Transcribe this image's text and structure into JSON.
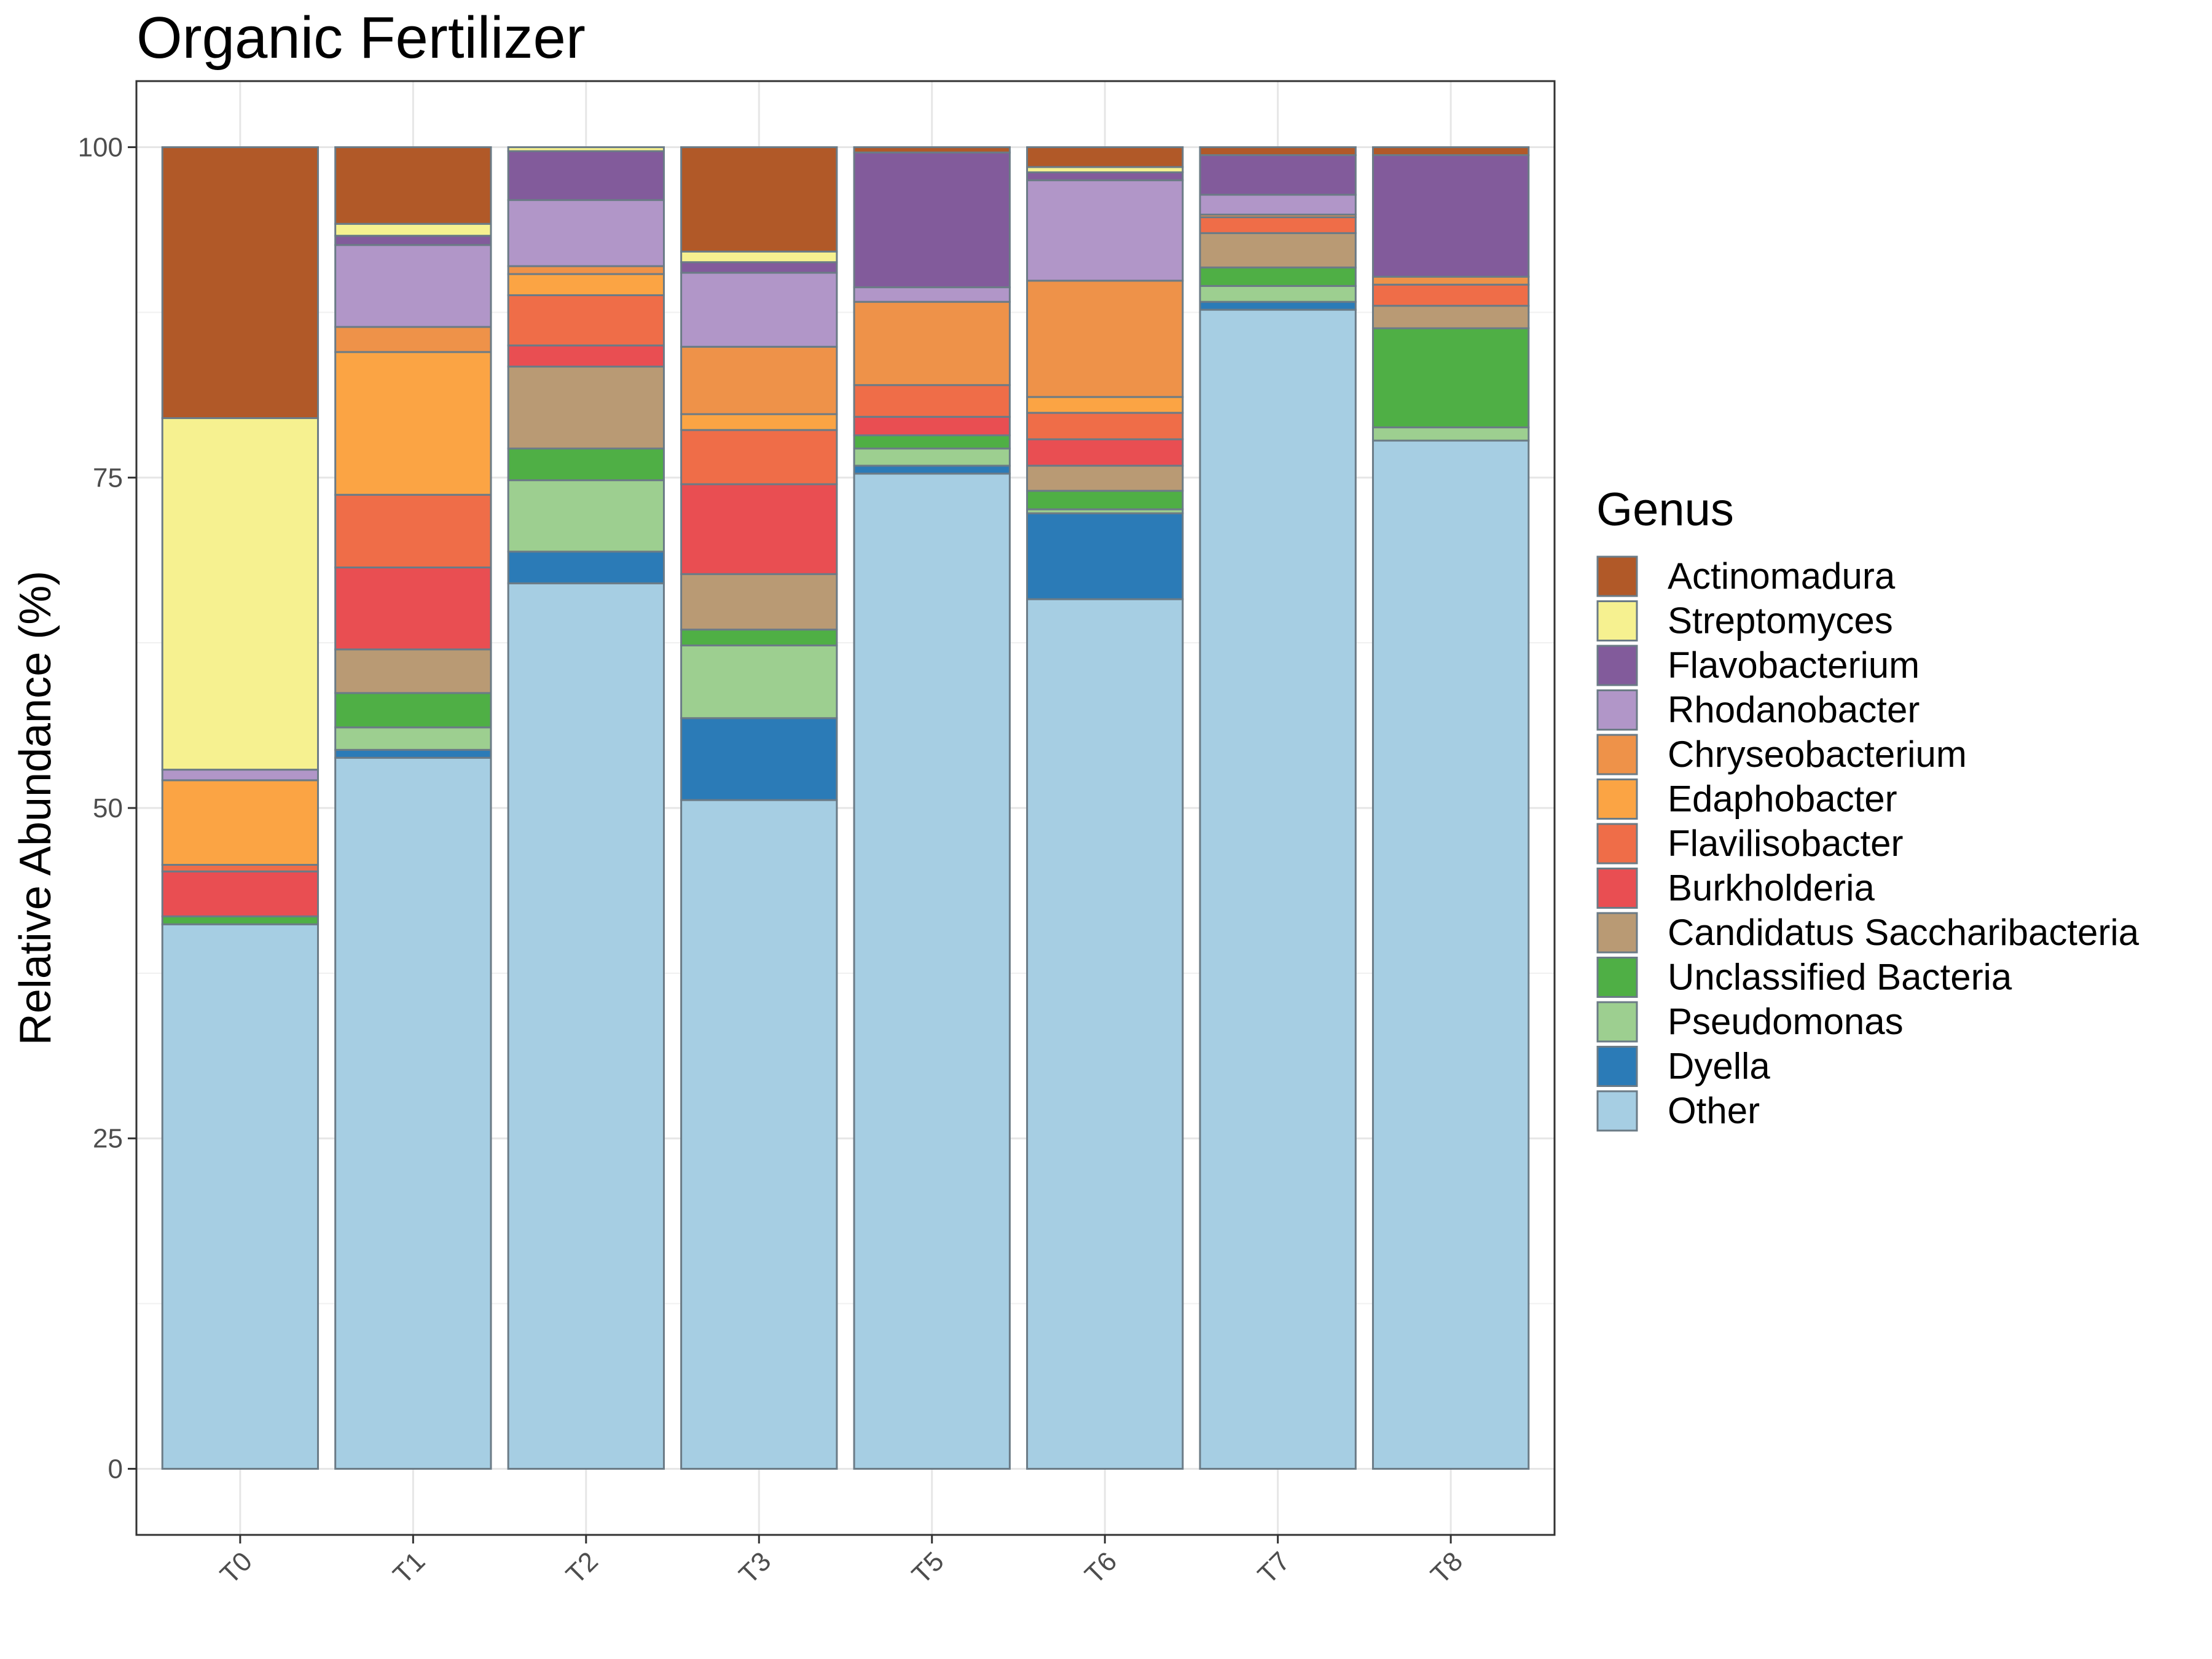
{
  "chart_data": {
    "type": "bar",
    "stacked": true,
    "title": "Organic Fertilizer",
    "xlabel": "",
    "ylabel": "Relative Abundance (%)",
    "ylim": [
      -5,
      105
    ],
    "yticks": [
      0,
      25,
      50,
      75,
      100
    ],
    "grid": true,
    "legend_title": "Genus",
    "legend_position": "right",
    "categories": [
      "T0",
      "T1",
      "T2",
      "T3",
      "T5",
      "T6",
      "T7",
      "T8"
    ],
    "series": [
      {
        "name": "Other",
        "color": "#A6CEE3",
        "values": [
          41.2,
          53.8,
          67.0,
          50.6,
          75.3,
          65.8,
          87.7,
          77.8
        ]
      },
      {
        "name": "Dyella",
        "color": "#2B7BB7",
        "values": [
          0.0,
          0.6,
          2.4,
          6.2,
          0.6,
          6.5,
          0.6,
          0.0
        ]
      },
      {
        "name": "Pseudomonas",
        "color": "#9DCF90",
        "values": [
          0.0,
          1.7,
          5.4,
          5.5,
          1.3,
          0.3,
          1.2,
          1.0
        ]
      },
      {
        "name": "Unclassified Bacteria",
        "color": "#4FAF45",
        "values": [
          0.6,
          2.6,
          2.4,
          1.2,
          1.0,
          1.4,
          1.4,
          7.5
        ]
      },
      {
        "name": "Candidatus Saccharibacteria",
        "color": "#B99A74",
        "values": [
          0.0,
          3.3,
          6.2,
          4.2,
          0.0,
          1.9,
          2.6,
          1.7
        ]
      },
      {
        "name": "Burkholderia",
        "color": "#E94E52",
        "values": [
          3.4,
          6.2,
          1.6,
          6.8,
          1.4,
          2.0,
          0.0,
          0.0
        ]
      },
      {
        "name": "Flavilisobacter",
        "color": "#EF6D48",
        "values": [
          0.5,
          5.5,
          3.8,
          4.1,
          2.4,
          2.0,
          1.2,
          1.6
        ]
      },
      {
        "name": "Edaphobacter",
        "color": "#FBA444",
        "values": [
          6.4,
          10.8,
          1.6,
          1.2,
          0.0,
          1.2,
          0.0,
          0.0
        ]
      },
      {
        "name": "Chryseobacterium",
        "color": "#EE9249",
        "values": [
          0.0,
          1.9,
          0.6,
          5.1,
          6.3,
          8.8,
          0.2,
          0.6
        ]
      },
      {
        "name": "Rhodanobacter",
        "color": "#B196C8",
        "values": [
          0.8,
          6.2,
          5.0,
          5.6,
          1.1,
          7.6,
          1.5,
          0.0
        ]
      },
      {
        "name": "Flavobacterium",
        "color": "#825B9B",
        "values": [
          0.0,
          0.7,
          3.7,
          0.8,
          10.2,
          0.6,
          3.0,
          9.2
        ]
      },
      {
        "name": "Streptomyces",
        "color": "#F6F190",
        "values": [
          26.6,
          0.9,
          0.3,
          0.8,
          0.0,
          0.4,
          0.0,
          0.0
        ]
      },
      {
        "name": "Actinomadura",
        "color": "#B15928",
        "values": [
          20.5,
          5.8,
          0.0,
          7.9,
          0.4,
          1.5,
          0.6,
          0.6
        ]
      }
    ],
    "legend_order": [
      "Actinomadura",
      "Streptomyces",
      "Flavobacterium",
      "Rhodanobacter",
      "Chryseobacterium",
      "Edaphobacter",
      "Flavilisobacter",
      "Burkholderia",
      "Candidatus Saccharibacteria",
      "Unclassified Bacteria",
      "Pseudomonas",
      "Dyella",
      "Other"
    ]
  }
}
